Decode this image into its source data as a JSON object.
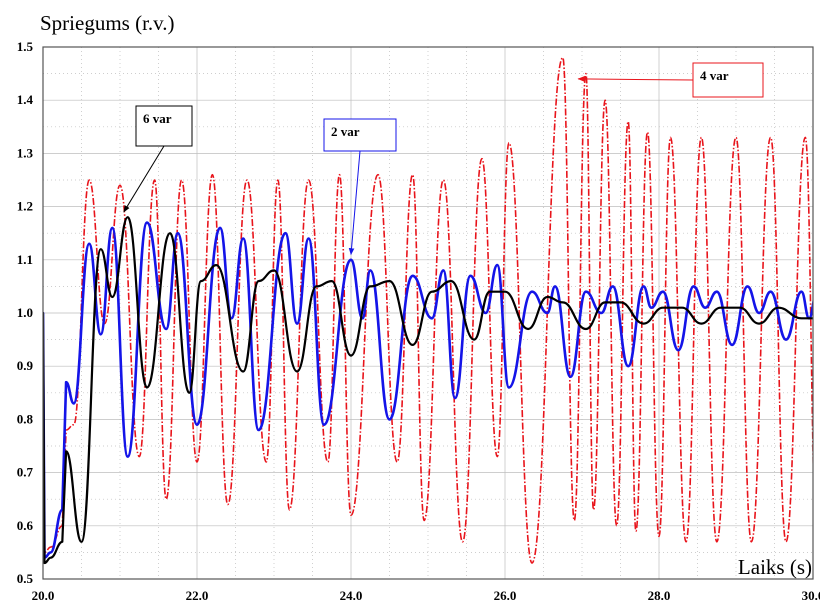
{
  "chart_data": {
    "type": "line",
    "ylabel": "Spriegums (r.v.)",
    "xlabel": "Laiks (s)",
    "xlim": [
      20.0,
      30.0
    ],
    "ylim": [
      0.5,
      1.5
    ],
    "x_ticks": [
      "20.0",
      "22.0",
      "24.0",
      "26.0",
      "28.0",
      "30.0"
    ],
    "y_ticks": [
      "0.5",
      "0.6",
      "0.7",
      "0.8",
      "0.9",
      "1.0",
      "1.1",
      "1.2",
      "1.3",
      "1.4",
      "1.5"
    ],
    "grid": true,
    "series": [
      {
        "name": "4 var",
        "color": "#e8141b",
        "style": "dash-dot",
        "points": [
          [
            19.75,
            1.0
          ],
          [
            20.0,
            1.0
          ],
          [
            20.02,
            0.55
          ],
          [
            20.1,
            0.56
          ],
          [
            20.25,
            0.6
          ],
          [
            20.3,
            0.78
          ],
          [
            20.4,
            0.79
          ],
          [
            20.6,
            1.25
          ],
          [
            20.8,
            0.98
          ],
          [
            21.0,
            1.24
          ],
          [
            21.25,
            0.73
          ],
          [
            21.45,
            1.25
          ],
          [
            21.6,
            0.65
          ],
          [
            21.8,
            1.25
          ],
          [
            22.0,
            0.72
          ],
          [
            22.2,
            1.26
          ],
          [
            22.4,
            0.64
          ],
          [
            22.65,
            1.25
          ],
          [
            22.9,
            0.72
          ],
          [
            23.05,
            1.25
          ],
          [
            23.2,
            0.63
          ],
          [
            23.45,
            1.25
          ],
          [
            23.7,
            0.72
          ],
          [
            23.85,
            1.26
          ],
          [
            24.0,
            0.62
          ],
          [
            24.35,
            1.26
          ],
          [
            24.6,
            0.72
          ],
          [
            24.8,
            1.26
          ],
          [
            24.95,
            0.61
          ],
          [
            25.2,
            1.25
          ],
          [
            25.45,
            0.57
          ],
          [
            25.7,
            1.29
          ],
          [
            25.9,
            0.73
          ],
          [
            26.05,
            1.32
          ],
          [
            26.35,
            0.53
          ],
          [
            26.75,
            1.48
          ],
          [
            26.9,
            0.61
          ],
          [
            27.05,
            1.45
          ],
          [
            27.15,
            0.63
          ],
          [
            27.3,
            1.4
          ],
          [
            27.45,
            0.6
          ],
          [
            27.6,
            1.36
          ],
          [
            27.7,
            0.59
          ],
          [
            27.85,
            1.34
          ],
          [
            28.0,
            0.58
          ],
          [
            28.15,
            1.33
          ],
          [
            28.35,
            0.57
          ],
          [
            28.55,
            1.33
          ],
          [
            28.75,
            0.57
          ],
          [
            29.0,
            1.33
          ],
          [
            29.2,
            0.57
          ],
          [
            29.45,
            1.33
          ],
          [
            29.65,
            0.57
          ],
          [
            29.9,
            1.33
          ],
          [
            30.05,
            0.57
          ]
        ]
      },
      {
        "name": "2 var",
        "color": "#1414e8",
        "style": "solid",
        "points": [
          [
            19.75,
            1.0
          ],
          [
            20.0,
            1.0
          ],
          [
            20.02,
            0.54
          ],
          [
            20.1,
            0.55
          ],
          [
            20.25,
            0.63
          ],
          [
            20.3,
            0.87
          ],
          [
            20.4,
            0.83
          ],
          [
            20.6,
            1.13
          ],
          [
            20.75,
            0.96
          ],
          [
            20.9,
            1.16
          ],
          [
            21.1,
            0.73
          ],
          [
            21.35,
            1.17
          ],
          [
            21.6,
            0.97
          ],
          [
            21.75,
            1.15
          ],
          [
            22.0,
            0.79
          ],
          [
            22.3,
            1.16
          ],
          [
            22.45,
            0.99
          ],
          [
            22.6,
            1.14
          ],
          [
            22.8,
            0.78
          ],
          [
            23.15,
            1.15
          ],
          [
            23.3,
            0.98
          ],
          [
            23.45,
            1.14
          ],
          [
            23.65,
            0.79
          ],
          [
            24.0,
            1.1
          ],
          [
            24.15,
            0.99
          ],
          [
            24.25,
            1.08
          ],
          [
            24.5,
            0.8
          ],
          [
            24.8,
            1.07
          ],
          [
            25.05,
            0.99
          ],
          [
            25.2,
            1.08
          ],
          [
            25.35,
            0.84
          ],
          [
            25.55,
            1.07
          ],
          [
            25.75,
            1.0
          ],
          [
            25.9,
            1.09
          ],
          [
            26.05,
            0.86
          ],
          [
            26.35,
            1.04
          ],
          [
            26.55,
            1.0
          ],
          [
            26.65,
            1.05
          ],
          [
            26.85,
            0.88
          ],
          [
            27.05,
            1.04
          ],
          [
            27.25,
            1.0
          ],
          [
            27.4,
            1.05
          ],
          [
            27.6,
            0.9
          ],
          [
            27.8,
            1.05
          ],
          [
            27.9,
            1.01
          ],
          [
            28.05,
            1.04
          ],
          [
            28.25,
            0.93
          ],
          [
            28.45,
            1.05
          ],
          [
            28.6,
            1.01
          ],
          [
            28.75,
            1.04
          ],
          [
            28.95,
            0.94
          ],
          [
            29.15,
            1.05
          ],
          [
            29.3,
            1.0
          ],
          [
            29.45,
            1.04
          ],
          [
            29.65,
            0.95
          ],
          [
            29.85,
            1.04
          ],
          [
            29.95,
            0.99
          ],
          [
            30.05,
            1.04
          ],
          [
            30.25,
            0.95
          ]
        ]
      },
      {
        "name": "6 var",
        "color": "#000000",
        "style": "solid",
        "points": [
          [
            19.75,
            1.0
          ],
          [
            20.0,
            1.0
          ],
          [
            20.02,
            0.53
          ],
          [
            20.1,
            0.54
          ],
          [
            20.25,
            0.57
          ],
          [
            20.3,
            0.74
          ],
          [
            20.5,
            0.57
          ],
          [
            20.75,
            1.12
          ],
          [
            20.9,
            1.03
          ],
          [
            21.1,
            1.18
          ],
          [
            21.35,
            0.86
          ],
          [
            21.65,
            1.15
          ],
          [
            21.9,
            0.85
          ],
          [
            22.05,
            1.06
          ],
          [
            22.25,
            1.09
          ],
          [
            22.6,
            0.89
          ],
          [
            22.8,
            1.06
          ],
          [
            23.0,
            1.08
          ],
          [
            23.3,
            0.89
          ],
          [
            23.55,
            1.05
          ],
          [
            23.75,
            1.06
          ],
          [
            24.0,
            0.92
          ],
          [
            24.25,
            1.05
          ],
          [
            24.5,
            1.06
          ],
          [
            24.8,
            0.94
          ],
          [
            25.05,
            1.04
          ],
          [
            25.3,
            1.06
          ],
          [
            25.6,
            0.95
          ],
          [
            25.8,
            1.04
          ],
          [
            26.0,
            1.04
          ],
          [
            26.3,
            0.97
          ],
          [
            26.55,
            1.03
          ],
          [
            26.75,
            1.02
          ],
          [
            27.05,
            0.97
          ],
          [
            27.3,
            1.02
          ],
          [
            27.5,
            1.02
          ],
          [
            27.8,
            0.98
          ],
          [
            28.05,
            1.01
          ],
          [
            28.3,
            1.01
          ],
          [
            28.55,
            0.98
          ],
          [
            28.8,
            1.01
          ],
          [
            29.05,
            1.01
          ],
          [
            29.3,
            0.98
          ],
          [
            29.55,
            1.01
          ],
          [
            29.85,
            0.99
          ],
          [
            30.25,
            0.99
          ]
        ]
      }
    ],
    "annotations": [
      {
        "text": "6 var",
        "color": "#000000",
        "x": 21.05,
        "y": 1.19
      },
      {
        "text": "2 var",
        "color": "#1414e8",
        "x": 24.0,
        "y": 1.11
      },
      {
        "text": "4 var",
        "color": "#e8141b",
        "x": 26.95,
        "y": 1.44
      }
    ]
  }
}
